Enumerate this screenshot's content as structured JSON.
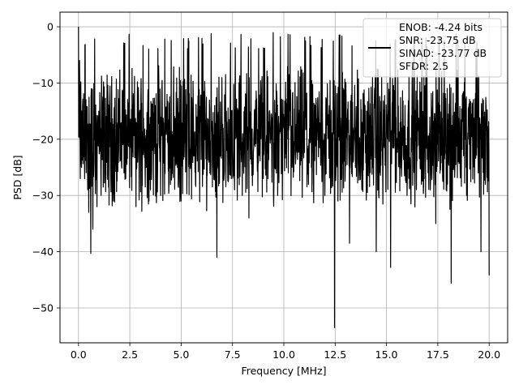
{
  "chart_data": {
    "type": "line",
    "xlabel": "Frequency [MHz]",
    "ylabel": "PSD [dB]",
    "xlim": [
      -0.9,
      20.9
    ],
    "ylim": [
      -56.2,
      2.6
    ],
    "x_ticks": [
      0.0,
      2.5,
      5.0,
      7.5,
      10.0,
      12.5,
      15.0,
      17.5,
      20.0
    ],
    "x_tick_labels": [
      "0.0",
      "2.5",
      "5.0",
      "7.5",
      "10.0",
      "12.5",
      "15.0",
      "17.5",
      "20.0"
    ],
    "y_ticks": [
      0,
      -10,
      -20,
      -30,
      -40,
      -50
    ],
    "y_tick_labels": [
      "0",
      "−10",
      "−20",
      "−30",
      "−40",
      "−50"
    ],
    "grid": true,
    "legend_position": "top-right",
    "legend_lines": [
      "ENOB: -4.24 bits",
      "SNR: -23.75 dB",
      "SINAD: -23.77 dB",
      "SFDR: 2.5"
    ],
    "series": [
      {
        "color": "#000000",
        "points": [
          [
            0.0,
            0.0
          ],
          [
            0.03,
            -18
          ],
          [
            0.05,
            -6
          ],
          [
            0.1,
            -12
          ],
          [
            0.15,
            -25
          ],
          [
            0.2,
            -14
          ],
          [
            0.3,
            -27
          ],
          [
            0.4,
            -16
          ],
          [
            0.45,
            -29
          ],
          [
            0.5,
            -33
          ],
          [
            0.55,
            -22
          ],
          [
            0.6,
            -40.3
          ],
          [
            0.7,
            -36
          ],
          [
            0.8,
            -24
          ],
          [
            0.9,
            -32
          ],
          [
            1.0,
            -20
          ],
          [
            1.1,
            -30
          ],
          [
            1.3,
            -26
          ],
          [
            1.5,
            -14
          ],
          [
            1.7,
            -31
          ],
          [
            2.0,
            -18
          ],
          [
            2.3,
            -27
          ],
          [
            2.5,
            -20
          ],
          [
            2.8,
            -32
          ],
          [
            3.0,
            -19
          ],
          [
            3.3,
            -25
          ],
          [
            3.6,
            -22
          ],
          [
            4.0,
            -30
          ],
          [
            4.3,
            -18
          ],
          [
            4.6,
            -24
          ],
          [
            5.0,
            -31
          ],
          [
            5.3,
            -16
          ],
          [
            5.7,
            -28
          ],
          [
            6.0,
            -20
          ],
          [
            6.4,
            -26
          ],
          [
            6.74,
            -41.0
          ],
          [
            6.9,
            -22
          ],
          [
            7.2,
            -15
          ],
          [
            7.6,
            -29
          ],
          [
            8.0,
            -19
          ],
          [
            8.3,
            -34
          ],
          [
            8.7,
            -21
          ],
          [
            9.0,
            -27
          ],
          [
            9.3,
            -15
          ],
          [
            9.7,
            -30
          ],
          [
            10.0,
            -18
          ],
          [
            10.4,
            -25
          ],
          [
            10.8,
            -22
          ],
          [
            11.2,
            -28
          ],
          [
            11.6,
            -17
          ],
          [
            12.0,
            -30
          ],
          [
            12.3,
            -21
          ],
          [
            12.47,
            -53.5
          ],
          [
            12.55,
            -20
          ],
          [
            12.9,
            -26
          ],
          [
            13.2,
            -38.5
          ],
          [
            13.5,
            -18
          ],
          [
            13.8,
            -29
          ],
          [
            14.2,
            -21
          ],
          [
            14.5,
            -40
          ],
          [
            14.8,
            -22
          ],
          [
            15.2,
            -42.8
          ],
          [
            15.6,
            -23
          ],
          [
            16.0,
            -30
          ],
          [
            16.3,
            -19
          ],
          [
            16.7,
            -28
          ],
          [
            17.0,
            -22
          ],
          [
            17.4,
            -35
          ],
          [
            17.8,
            -21
          ],
          [
            18.15,
            -45.6
          ],
          [
            18.5,
            -24
          ],
          [
            18.9,
            -30
          ],
          [
            19.3,
            -22
          ],
          [
            19.6,
            -40
          ],
          [
            19.8,
            -27
          ],
          [
            20.0,
            -44.2
          ]
        ],
        "noise_band_db": [
          -33,
          -6
        ]
      }
    ]
  }
}
